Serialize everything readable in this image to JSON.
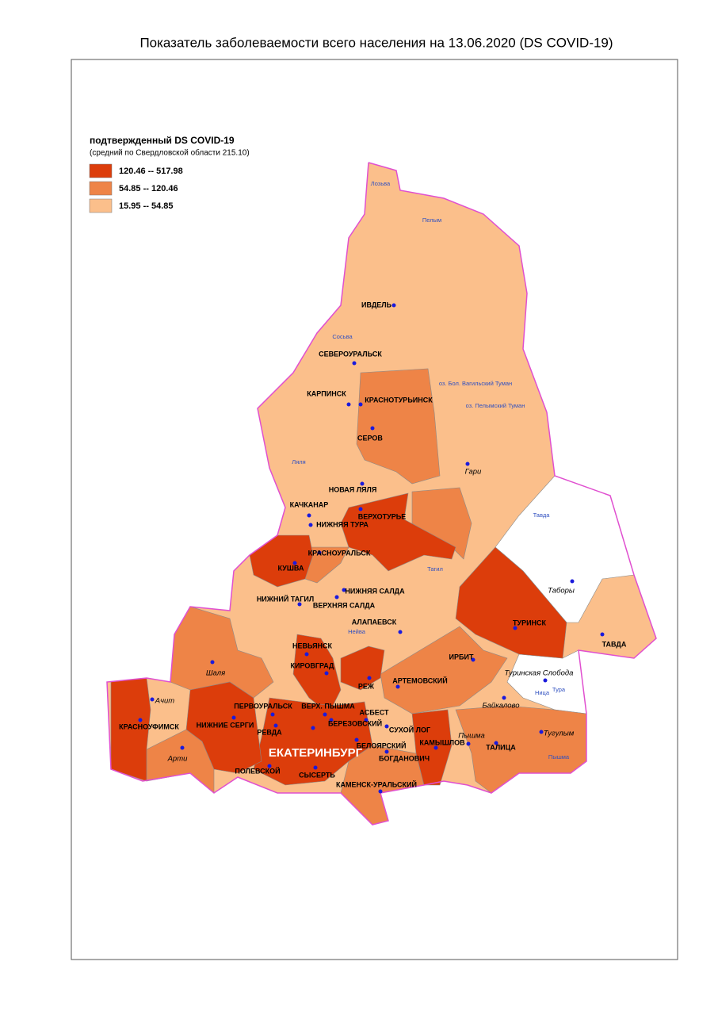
{
  "title": "Показатель заболеваемости всего населения  на 13.06.2020 (DS  COVID-19)",
  "legend": {
    "title": "подтвержденный DS  COVID-19",
    "subtitle": "(средний по Свердловской области 215.10)",
    "items": [
      {
        "label": "120.46 -- 517.98",
        "color": "#dc3d0b"
      },
      {
        "label": "54.85 -- 120.46",
        "color": "#ee8447"
      },
      {
        "label": "15.95 -- 54.85",
        "color": "#fbbf8b"
      }
    ]
  },
  "places": [
    "ИВДЕЛЬ",
    "СЕВЕРОУРАЛЬСК",
    "КАРПИНСК",
    "КРАСНОТУРЬИНСК",
    "СЕРОВ",
    "Гари",
    "НОВАЯ ЛЯЛЯ",
    "КАЧКАНАР",
    "ВЕРХОТУРЬЕ",
    "НИЖНЯЯ ТУРА",
    "КРАСНОУРАЛЬСК",
    "КУШВА",
    "Таборы",
    "НИЖНИЙ ТАГИЛ",
    "НИЖНЯЯ САЛДА",
    "ВЕРХНЯЯ САЛДА",
    "ТУРИНСК",
    "ТАВДА",
    "АЛАПАЕВСК",
    "НЕВЬЯНСК",
    "ИРБИТ",
    "Шаля",
    "КИРОВГРАД",
    "РЕЖ",
    "АРТЕМОВСКИЙ",
    "Туринская Слобода",
    "Ачит",
    "Байкалово",
    "ПЕРВОУРАЛЬСК",
    "ВЕРХ. ПЫШМА",
    "АСБЕСТ",
    "КРАСНОУФИМСК",
    "НИЖНИЕ СЕРГИ",
    "РЕВДА",
    "БЕРЕЗОВСКИЙ",
    "СУХОЙ ЛОГ",
    "ЕКАТЕРИНБУРГ",
    "БЕЛОЯРСКИЙ",
    "КАМЫШЛОВ",
    "Пышма",
    "ТАЛИЦА",
    "Тугулым",
    "Арти",
    "БОГДАНОВИЧ",
    "ПОЛЕВСКОЙ",
    "СЫСЕРТЬ",
    "КАМЕНСК-УРАЛЬСКИЙ"
  ],
  "waters": [
    "Лозьва",
    "Пелым",
    "Сосьва",
    "Ляля",
    "Тавда",
    "Тура",
    "Ница",
    "Тагил",
    "Нейва",
    "Пышма",
    "оз. Бол. Вагильский Туман",
    "оз. Пелымский Туман"
  ]
}
